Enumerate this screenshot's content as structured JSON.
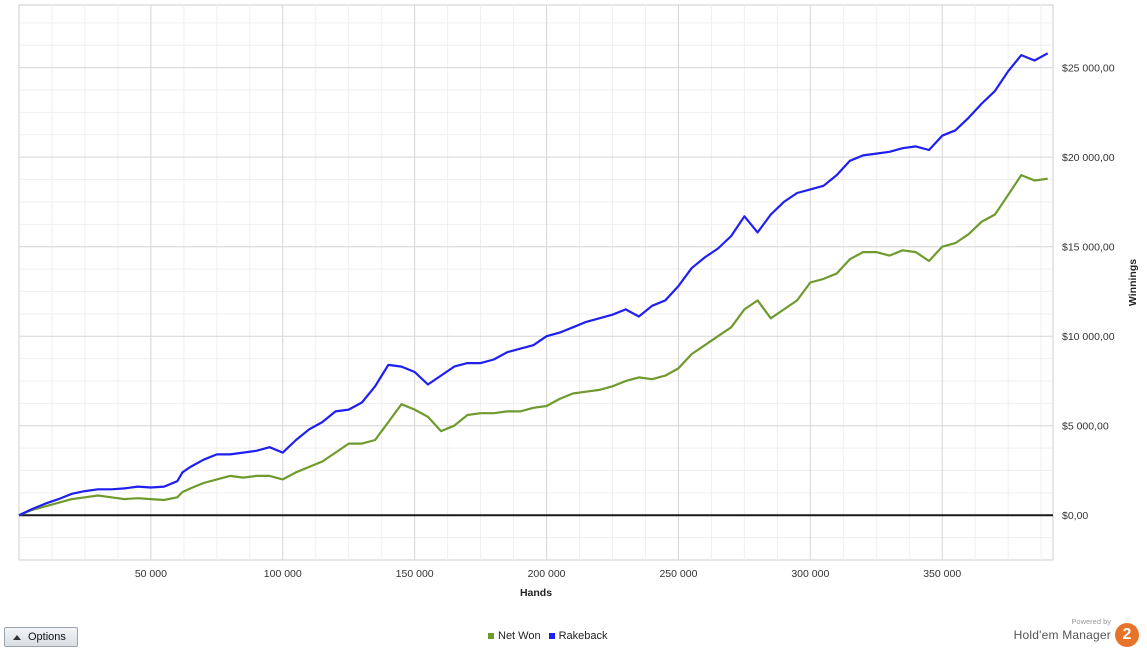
{
  "chart_data": {
    "type": "line",
    "xlabel": "Hands",
    "ylabel": "Winnings",
    "xlim": [
      0,
      392000
    ],
    "ylim": [
      -2500,
      28500
    ],
    "x_ticks": [
      50000,
      100000,
      150000,
      200000,
      250000,
      300000,
      350000
    ],
    "x_tick_labels": [
      "50 000",
      "100 000",
      "150 000",
      "200 000",
      "250 000",
      "300 000",
      "350 000"
    ],
    "y_ticks": [
      0,
      5000,
      10000,
      15000,
      20000,
      25000
    ],
    "y_tick_labels": [
      "$0,00",
      "$5 000,00",
      "$10 000,00",
      "$15 000,00",
      "$20 000,00",
      "$25 000,00"
    ],
    "grid": true,
    "legend_position": "bottom-center",
    "series": [
      {
        "name": "Net Won",
        "color": "#6f9a2e",
        "x": [
          0,
          5000,
          10000,
          15000,
          20000,
          25000,
          30000,
          35000,
          40000,
          45000,
          50000,
          55000,
          60000,
          62000,
          65000,
          70000,
          75000,
          80000,
          85000,
          90000,
          95000,
          100000,
          105000,
          110000,
          115000,
          120000,
          125000,
          130000,
          135000,
          140000,
          145000,
          150000,
          155000,
          160000,
          165000,
          170000,
          175000,
          180000,
          185000,
          190000,
          195000,
          200000,
          205000,
          210000,
          215000,
          220000,
          225000,
          230000,
          235000,
          240000,
          245000,
          250000,
          255000,
          260000,
          265000,
          270000,
          275000,
          280000,
          285000,
          290000,
          295000,
          300000,
          305000,
          310000,
          315000,
          320000,
          325000,
          330000,
          335000,
          340000,
          345000,
          350000,
          355000,
          360000,
          365000,
          370000,
          375000,
          380000,
          385000,
          390000
        ],
        "values": [
          0,
          300,
          500,
          700,
          900,
          1000,
          1100,
          1000,
          900,
          950,
          900,
          850,
          1000,
          1300,
          1500,
          1800,
          2000,
          2200,
          2100,
          2200,
          2200,
          2000,
          2400,
          2700,
          3000,
          3500,
          4000,
          4000,
          4200,
          5200,
          6200,
          5900,
          5500,
          4700,
          5000,
          5600,
          5700,
          5700,
          5800,
          5800,
          6000,
          6100,
          6500,
          6800,
          6900,
          7000,
          7200,
          7500,
          7700,
          7600,
          7800,
          8200,
          9000,
          9500,
          10000,
          10500,
          11500,
          12000,
          11000,
          11500,
          12000,
          13000,
          13200,
          13500,
          14300,
          14700,
          14700,
          14500,
          14800,
          14700,
          14200,
          15000,
          15200,
          15700,
          16400,
          16800,
          17900,
          19000,
          18700,
          18800
        ]
      },
      {
        "name": "Rakeback",
        "color": "#1f1ff0",
        "x": [
          0,
          5000,
          10000,
          15000,
          20000,
          25000,
          30000,
          35000,
          40000,
          45000,
          50000,
          55000,
          60000,
          62000,
          65000,
          70000,
          75000,
          80000,
          85000,
          90000,
          95000,
          100000,
          105000,
          110000,
          115000,
          120000,
          125000,
          130000,
          135000,
          140000,
          145000,
          150000,
          155000,
          160000,
          165000,
          170000,
          175000,
          180000,
          185000,
          190000,
          195000,
          200000,
          205000,
          210000,
          215000,
          220000,
          225000,
          230000,
          235000,
          240000,
          245000,
          250000,
          255000,
          260000,
          265000,
          270000,
          275000,
          280000,
          285000,
          290000,
          295000,
          300000,
          305000,
          310000,
          315000,
          320000,
          325000,
          330000,
          335000,
          340000,
          345000,
          350000,
          355000,
          360000,
          365000,
          370000,
          375000,
          380000,
          385000,
          390000
        ],
        "values": [
          0,
          350,
          650,
          900,
          1200,
          1350,
          1450,
          1450,
          1500,
          1600,
          1550,
          1600,
          1900,
          2400,
          2700,
          3100,
          3400,
          3400,
          3500,
          3600,
          3800,
          3500,
          4200,
          4800,
          5200,
          5800,
          5900,
          6300,
          7200,
          8400,
          8300,
          8000,
          7300,
          7800,
          8300,
          8500,
          8500,
          8700,
          9100,
          9300,
          9500,
          10000,
          10200,
          10500,
          10800,
          11000,
          11200,
          11500,
          11100,
          11700,
          12000,
          12800,
          13800,
          14400,
          14900,
          15600,
          16700,
          15800,
          16800,
          17500,
          18000,
          18200,
          18400,
          19000,
          19800,
          20100,
          20200,
          20300,
          20500,
          20600,
          20400,
          21200,
          21500,
          22200,
          23000,
          23700,
          24800,
          25700,
          25400,
          25800
        ]
      }
    ]
  },
  "controls": {
    "options_label": "Options"
  },
  "branding": {
    "powered_by": "Powered by",
    "product_name": "Hold'em Manager",
    "logo_text": "2"
  }
}
